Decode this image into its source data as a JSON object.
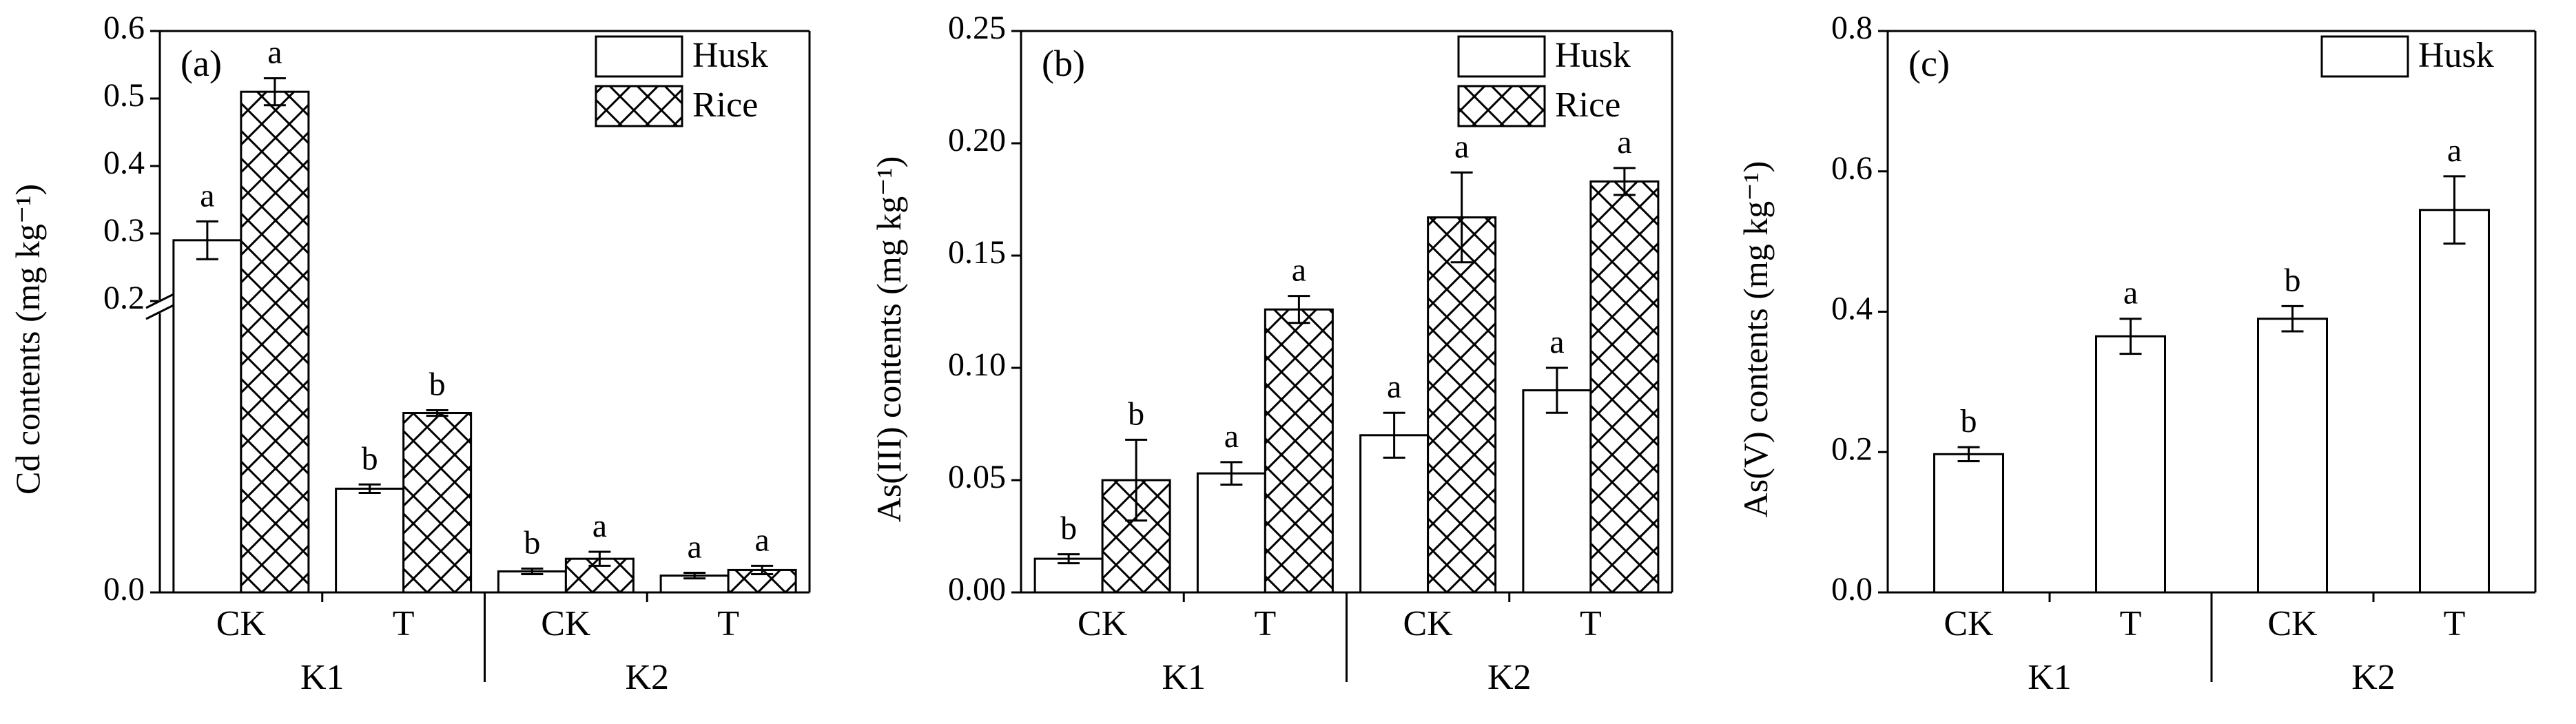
{
  "chart_data": [
    {
      "type": "bar",
      "panel_label": "(a)",
      "ylabel": "Cd contents (mg kg⁻¹)",
      "ylim": [
        0,
        0.6
      ],
      "y_break": [
        0.2,
        0.2
      ],
      "y_ticks": [
        "0.0",
        "0.2",
        "0.3",
        "0.4",
        "0.5",
        "0.6"
      ],
      "groups": [
        {
          "name": "K1",
          "categories": [
            "CK",
            "T"
          ]
        },
        {
          "name": "K2",
          "categories": [
            "CK",
            "T"
          ]
        }
      ],
      "categories": [
        "CK",
        "T",
        "CK",
        "T"
      ],
      "series": [
        {
          "name": "Husk",
          "pattern": "plain",
          "values": [
            0.29,
            0.074,
            0.015,
            0.012
          ],
          "errors": [
            0.028,
            0.003,
            0.002,
            0.002
          ],
          "letters": [
            "a",
            "b",
            "b",
            "a"
          ]
        },
        {
          "name": "Rice",
          "pattern": "cross-hatch",
          "values": [
            0.51,
            0.128,
            0.024,
            0.016
          ],
          "errors": [
            0.02,
            0.002,
            0.005,
            0.003
          ],
          "letters": [
            "a",
            "b",
            "a",
            "a"
          ]
        }
      ],
      "legend": "top-right"
    },
    {
      "type": "bar",
      "panel_label": "(b)",
      "ylabel": "As(III) contents (mg kg⁻¹)",
      "ylim": [
        0,
        0.25
      ],
      "y_ticks": [
        "0.00",
        "0.05",
        "0.10",
        "0.15",
        "0.20",
        "0.25"
      ],
      "groups": [
        {
          "name": "K1",
          "categories": [
            "CK",
            "T"
          ]
        },
        {
          "name": "K2",
          "categories": [
            "CK",
            "T"
          ]
        }
      ],
      "categories": [
        "CK",
        "T",
        "CK",
        "T"
      ],
      "series": [
        {
          "name": "Husk",
          "pattern": "plain",
          "values": [
            0.015,
            0.053,
            0.07,
            0.09
          ],
          "errors": [
            0.002,
            0.005,
            0.01,
            0.01
          ],
          "letters": [
            "b",
            "a",
            "a",
            "a"
          ]
        },
        {
          "name": "Rice",
          "pattern": "cross-hatch",
          "values": [
            0.05,
            0.126,
            0.167,
            0.183
          ],
          "errors": [
            0.018,
            0.006,
            0.02,
            0.006
          ],
          "letters": [
            "b",
            "a",
            "a",
            "a"
          ]
        }
      ],
      "legend": "top-right"
    },
    {
      "type": "bar",
      "panel_label": "(c)",
      "ylabel": "As(V) contents (mg kg⁻¹)",
      "ylim": [
        0,
        0.8
      ],
      "y_ticks": [
        "0.0",
        "0.2",
        "0.4",
        "0.6",
        "0.8"
      ],
      "groups": [
        {
          "name": "K1",
          "categories": [
            "CK",
            "T"
          ]
        },
        {
          "name": "K2",
          "categories": [
            "CK",
            "T"
          ]
        }
      ],
      "categories": [
        "CK",
        "T",
        "CK",
        "T"
      ],
      "series": [
        {
          "name": "Husk",
          "pattern": "plain",
          "values": [
            0.197,
            0.365,
            0.39,
            0.545
          ],
          "errors": [
            0.01,
            0.025,
            0.018,
            0.048
          ],
          "letters": [
            "b",
            "a",
            "b",
            "a"
          ]
        }
      ],
      "legend": "top-right"
    }
  ]
}
